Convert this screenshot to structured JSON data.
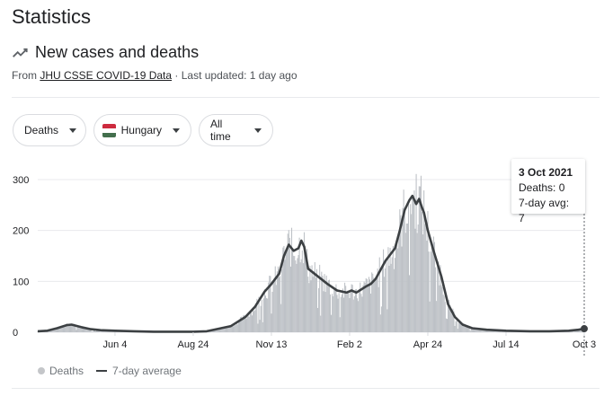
{
  "page": {
    "title": "Statistics"
  },
  "section": {
    "title": "New cases and deaths",
    "source_prefix": "From ",
    "source_link": "JHU CSSE COVID-19 Data",
    "updated": " · Last updated: 1 day ago"
  },
  "filters": {
    "metric": "Deaths",
    "country": "Hungary",
    "range": "All time"
  },
  "flag_colors": [
    "#cd2a3e",
    "#ffffff",
    "#436f4d"
  ],
  "tooltip": {
    "date": "3 Oct 2021",
    "deaths": "Deaths: 0",
    "avg": "7-day avg: 7"
  },
  "legend": {
    "bars": "Deaths",
    "line": "7-day average"
  },
  "colors": {
    "bars": "#bdc1c6",
    "line": "#3c4043",
    "grid": "#e8eaed"
  },
  "chart_data": {
    "type": "bar",
    "y_ticks": [
      0,
      100,
      200,
      300
    ],
    "ylim": [
      0,
      320
    ],
    "x_tick_labels": [
      "Jun 4",
      "Aug 24",
      "Nov 13",
      "Feb 2",
      "Apr 24",
      "Jul 14",
      "Oct 3"
    ],
    "x_ticks_day": [
      80,
      161,
      242,
      323,
      404,
      485,
      566
    ],
    "x_range_days": [
      0,
      566
    ],
    "series": [
      {
        "name": "7-day average",
        "points": [
          [
            0,
            2
          ],
          [
            10,
            3
          ],
          [
            20,
            8
          ],
          [
            30,
            14
          ],
          [
            35,
            15
          ],
          [
            45,
            10
          ],
          [
            55,
            6
          ],
          [
            65,
            4
          ],
          [
            80,
            3
          ],
          [
            100,
            2
          ],
          [
            120,
            1
          ],
          [
            140,
            1
          ],
          [
            161,
            1
          ],
          [
            175,
            2
          ],
          [
            185,
            6
          ],
          [
            200,
            12
          ],
          [
            215,
            30
          ],
          [
            225,
            50
          ],
          [
            235,
            80
          ],
          [
            242,
            95
          ],
          [
            250,
            115
          ],
          [
            255,
            150
          ],
          [
            260,
            172
          ],
          [
            265,
            160
          ],
          [
            270,
            165
          ],
          [
            273,
            180
          ],
          [
            276,
            168
          ],
          [
            280,
            125
          ],
          [
            290,
            110
          ],
          [
            300,
            95
          ],
          [
            310,
            82
          ],
          [
            320,
            78
          ],
          [
            325,
            82
          ],
          [
            330,
            78
          ],
          [
            340,
            90
          ],
          [
            345,
            95
          ],
          [
            350,
            105
          ],
          [
            360,
            140
          ],
          [
            370,
            165
          ],
          [
            375,
            200
          ],
          [
            380,
            240
          ],
          [
            385,
            260
          ],
          [
            388,
            268
          ],
          [
            392,
            252
          ],
          [
            395,
            262
          ],
          [
            398,
            245
          ],
          [
            400,
            235
          ],
          [
            404,
            200
          ],
          [
            410,
            160
          ],
          [
            418,
            110
          ],
          [
            425,
            55
          ],
          [
            432,
            30
          ],
          [
            440,
            15
          ],
          [
            450,
            8
          ],
          [
            465,
            5
          ],
          [
            485,
            3
          ],
          [
            510,
            2
          ],
          [
            530,
            2
          ],
          [
            550,
            3
          ],
          [
            560,
            5
          ],
          [
            566,
            7
          ]
        ]
      }
    ],
    "bars_note": "Daily Deaths bars follow the series shape with day-to-day noise; peak daily value about 311 around Apr 10."
  }
}
